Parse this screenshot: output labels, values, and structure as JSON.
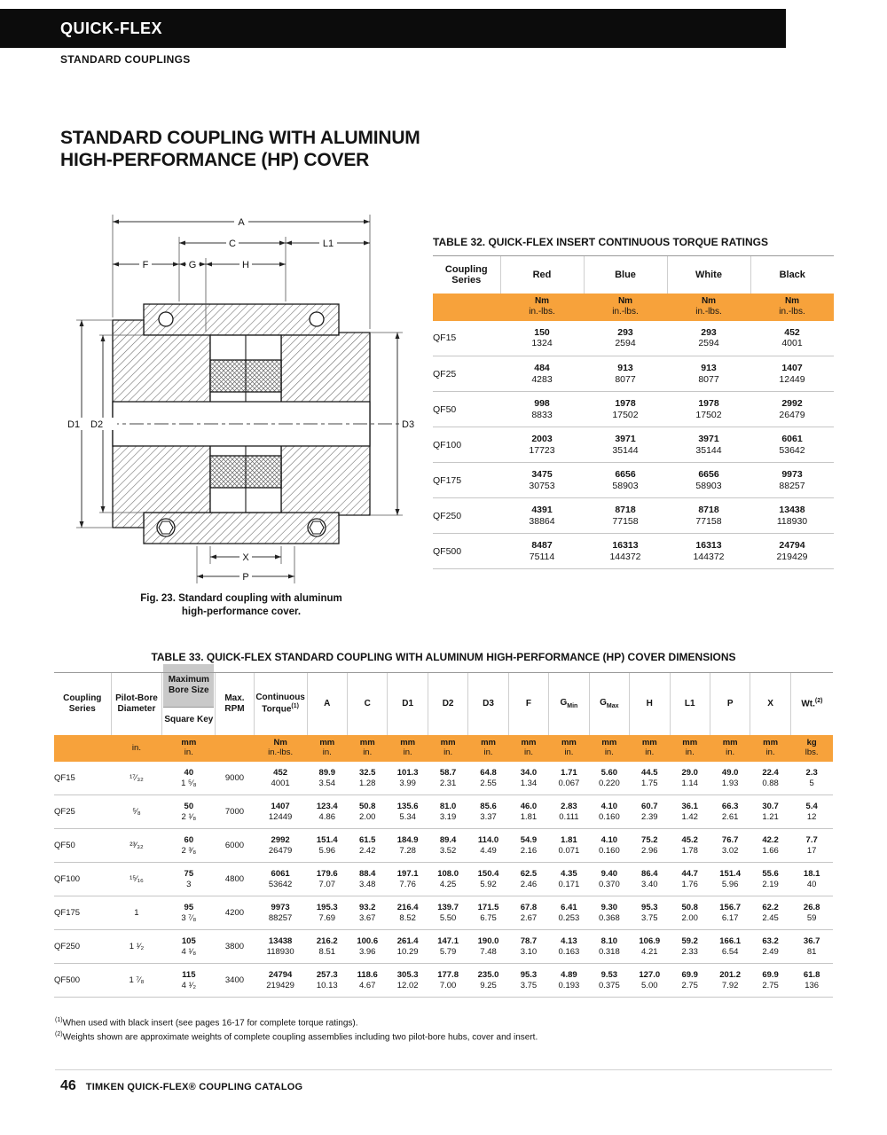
{
  "masthead": {
    "brand": "QUICK-FLEX",
    "section": "STANDARD COUPLINGS"
  },
  "title": {
    "line1": "STANDARD COUPLING WITH ALUMINUM",
    "line2": "HIGH-PERFORMANCE (HP) COVER"
  },
  "figure": {
    "caption_line1": "Fig. 23. Standard coupling with aluminum",
    "caption_line2": "high-performance cover.",
    "dims": {
      "a": "A",
      "c": "C",
      "l1": "L1",
      "f": "F",
      "g": "G",
      "h": "H",
      "d1": "D1",
      "d2": "D2",
      "d3": "D3",
      "x": "X",
      "p": "P"
    }
  },
  "table32": {
    "title": "TABLE 32. QUICK-FLEX INSERT CONTINUOUS TORQUE RATINGS",
    "col_series": "Coupling Series",
    "colors": [
      "Red",
      "Blue",
      "White",
      "Black"
    ],
    "unit_top": "Nm",
    "unit_bottom": "in.-lbs.",
    "rows": [
      {
        "series": "QF15",
        "cells": [
          [
            "150",
            "1324"
          ],
          [
            "293",
            "2594"
          ],
          [
            "293",
            "2594"
          ],
          [
            "452",
            "4001"
          ]
        ]
      },
      {
        "series": "QF25",
        "cells": [
          [
            "484",
            "4283"
          ],
          [
            "913",
            "8077"
          ],
          [
            "913",
            "8077"
          ],
          [
            "1407",
            "12449"
          ]
        ]
      },
      {
        "series": "QF50",
        "cells": [
          [
            "998",
            "8833"
          ],
          [
            "1978",
            "17502"
          ],
          [
            "1978",
            "17502"
          ],
          [
            "2992",
            "26479"
          ]
        ]
      },
      {
        "series": "QF100",
        "cells": [
          [
            "2003",
            "17723"
          ],
          [
            "3971",
            "35144"
          ],
          [
            "3971",
            "35144"
          ],
          [
            "6061",
            "53642"
          ]
        ]
      },
      {
        "series": "QF175",
        "cells": [
          [
            "3475",
            "30753"
          ],
          [
            "6656",
            "58903"
          ],
          [
            "6656",
            "58903"
          ],
          [
            "9973",
            "88257"
          ]
        ]
      },
      {
        "series": "QF250",
        "cells": [
          [
            "4391",
            "38864"
          ],
          [
            "8718",
            "77158"
          ],
          [
            "8718",
            "77158"
          ],
          [
            "13438",
            "118930"
          ]
        ]
      },
      {
        "series": "QF500",
        "cells": [
          [
            "8487",
            "75114"
          ],
          [
            "16313",
            "144372"
          ],
          [
            "16313",
            "144372"
          ],
          [
            "24794",
            "219429"
          ]
        ]
      }
    ]
  },
  "table33": {
    "title": "TABLE 33. QUICK-FLEX STANDARD COUPLING WITH ALUMINUM HIGH-PERFORMANCE (HP) COVER DIMENSIONS",
    "header": {
      "series": "Coupling Series",
      "pilot_bore": "Pilot-Bore Diameter",
      "max_bore": "Maximum Bore Size",
      "square_key": "Square Key",
      "max_rpm": "Max. RPM",
      "torque_line1": "Continuous",
      "torque_line2": "Torque",
      "torque_sup": "(1)",
      "dims": [
        "A",
        "C",
        "D1",
        "D2",
        "D3",
        "F"
      ],
      "g": "G",
      "g_min": "Min",
      "g_max": "Max",
      "dims2": [
        "H",
        "L1",
        "P",
        "X"
      ],
      "wt": "Wt.",
      "wt_sup": "(2)"
    },
    "units": {
      "pilot_bore": "in.",
      "mm": "mm",
      "in": "in.",
      "nm": "Nm",
      "inlbs": "in.-lbs.",
      "kg": "kg",
      "lbs": "lbs."
    },
    "rows": [
      {
        "series": "QF15",
        "pilot_bore": "¹⁷⁄₃₂",
        "max_bore": [
          "40",
          "1 ⁵⁄₈"
        ],
        "rpm": "9000",
        "torque": [
          "452",
          "4001"
        ],
        "dims": [
          [
            "89.9",
            "3.54"
          ],
          [
            "32.5",
            "1.28"
          ],
          [
            "101.3",
            "3.99"
          ],
          [
            "58.7",
            "2.31"
          ],
          [
            "64.8",
            "2.55"
          ],
          [
            "34.0",
            "1.34"
          ],
          [
            "1.71",
            "0.067"
          ],
          [
            "5.60",
            "0.220"
          ],
          [
            "44.5",
            "1.75"
          ],
          [
            "29.0",
            "1.14"
          ],
          [
            "49.0",
            "1.93"
          ],
          [
            "22.4",
            "0.88"
          ]
        ],
        "wt": [
          "2.3",
          "5"
        ]
      },
      {
        "series": "QF25",
        "pilot_bore": "⁵⁄₈",
        "max_bore": [
          "50",
          "2 ¹⁄₈"
        ],
        "rpm": "7000",
        "torque": [
          "1407",
          "12449"
        ],
        "dims": [
          [
            "123.4",
            "4.86"
          ],
          [
            "50.8",
            "2.00"
          ],
          [
            "135.6",
            "5.34"
          ],
          [
            "81.0",
            "3.19"
          ],
          [
            "85.6",
            "3.37"
          ],
          [
            "46.0",
            "1.81"
          ],
          [
            "2.83",
            "0.111"
          ],
          [
            "4.10",
            "0.160"
          ],
          [
            "60.7",
            "2.39"
          ],
          [
            "36.1",
            "1.42"
          ],
          [
            "66.3",
            "2.61"
          ],
          [
            "30.7",
            "1.21"
          ]
        ],
        "wt": [
          "5.4",
          "12"
        ]
      },
      {
        "series": "QF50",
        "pilot_bore": "²³⁄₃₂",
        "max_bore": [
          "60",
          "2 ³⁄₈"
        ],
        "rpm": "6000",
        "torque": [
          "2992",
          "26479"
        ],
        "dims": [
          [
            "151.4",
            "5.96"
          ],
          [
            "61.5",
            "2.42"
          ],
          [
            "184.9",
            "7.28"
          ],
          [
            "89.4",
            "3.52"
          ],
          [
            "114.0",
            "4.49"
          ],
          [
            "54.9",
            "2.16"
          ],
          [
            "1.81",
            "0.071"
          ],
          [
            "4.10",
            "0.160"
          ],
          [
            "75.2",
            "2.96"
          ],
          [
            "45.2",
            "1.78"
          ],
          [
            "76.7",
            "3.02"
          ],
          [
            "42.2",
            "1.66"
          ]
        ],
        "wt": [
          "7.7",
          "17"
        ]
      },
      {
        "series": "QF100",
        "pilot_bore": "¹⁵⁄₁₆",
        "max_bore": [
          "75",
          "3"
        ],
        "rpm": "4800",
        "torque": [
          "6061",
          "53642"
        ],
        "dims": [
          [
            "179.6",
            "7.07"
          ],
          [
            "88.4",
            "3.48"
          ],
          [
            "197.1",
            "7.76"
          ],
          [
            "108.0",
            "4.25"
          ],
          [
            "150.4",
            "5.92"
          ],
          [
            "62.5",
            "2.46"
          ],
          [
            "4.35",
            "0.171"
          ],
          [
            "9.40",
            "0.370"
          ],
          [
            "86.4",
            "3.40"
          ],
          [
            "44.7",
            "1.76"
          ],
          [
            "151.4",
            "5.96"
          ],
          [
            "55.6",
            "2.19"
          ]
        ],
        "wt": [
          "18.1",
          "40"
        ]
      },
      {
        "series": "QF175",
        "pilot_bore": "1",
        "max_bore": [
          "95",
          "3 ⁷⁄₈"
        ],
        "rpm": "4200",
        "torque": [
          "9973",
          "88257"
        ],
        "dims": [
          [
            "195.3",
            "7.69"
          ],
          [
            "93.2",
            "3.67"
          ],
          [
            "216.4",
            "8.52"
          ],
          [
            "139.7",
            "5.50"
          ],
          [
            "171.5",
            "6.75"
          ],
          [
            "67.8",
            "2.67"
          ],
          [
            "6.41",
            "0.253"
          ],
          [
            "9.30",
            "0.368"
          ],
          [
            "95.3",
            "3.75"
          ],
          [
            "50.8",
            "2.00"
          ],
          [
            "156.7",
            "6.17"
          ],
          [
            "62.2",
            "2.45"
          ]
        ],
        "wt": [
          "26.8",
          "59"
        ]
      },
      {
        "series": "QF250",
        "pilot_bore": "1 ¹⁄₂",
        "max_bore": [
          "105",
          "4 ¹⁄₈"
        ],
        "rpm": "3800",
        "torque": [
          "13438",
          "118930"
        ],
        "dims": [
          [
            "216.2",
            "8.51"
          ],
          [
            "100.6",
            "3.96"
          ],
          [
            "261.4",
            "10.29"
          ],
          [
            "147.1",
            "5.79"
          ],
          [
            "190.0",
            "7.48"
          ],
          [
            "78.7",
            "3.10"
          ],
          [
            "4.13",
            "0.163"
          ],
          [
            "8.10",
            "0.318"
          ],
          [
            "106.9",
            "4.21"
          ],
          [
            "59.2",
            "2.33"
          ],
          [
            "166.1",
            "6.54"
          ],
          [
            "63.2",
            "2.49"
          ]
        ],
        "wt": [
          "36.7",
          "81"
        ]
      },
      {
        "series": "QF500",
        "pilot_bore": "1 ⁷⁄₈",
        "max_bore": [
          "115",
          "4 ¹⁄₂"
        ],
        "rpm": "3400",
        "torque": [
          "24794",
          "219429"
        ],
        "dims": [
          [
            "257.3",
            "10.13"
          ],
          [
            "118.6",
            "4.67"
          ],
          [
            "305.3",
            "12.02"
          ],
          [
            "177.8",
            "7.00"
          ],
          [
            "235.0",
            "9.25"
          ],
          [
            "95.3",
            "3.75"
          ],
          [
            "4.89",
            "0.193"
          ],
          [
            "9.53",
            "0.375"
          ],
          [
            "127.0",
            "5.00"
          ],
          [
            "69.9",
            "2.75"
          ],
          [
            "201.2",
            "7.92"
          ],
          [
            "69.9",
            "2.75"
          ]
        ],
        "wt": [
          "61.8",
          "136"
        ]
      }
    ]
  },
  "footnotes": [
    {
      "sup": "(1)",
      "text": "When used with black insert (see pages 16-17 for complete torque ratings)."
    },
    {
      "sup": "(2)",
      "text": "Weights shown are approximate weights of complete coupling assemblies including two pilot-bore hubs, cover and insert."
    }
  ],
  "footer": {
    "page": "46",
    "text": "TIMKEN QUICK-FLEX® COUPLING CATALOG"
  }
}
